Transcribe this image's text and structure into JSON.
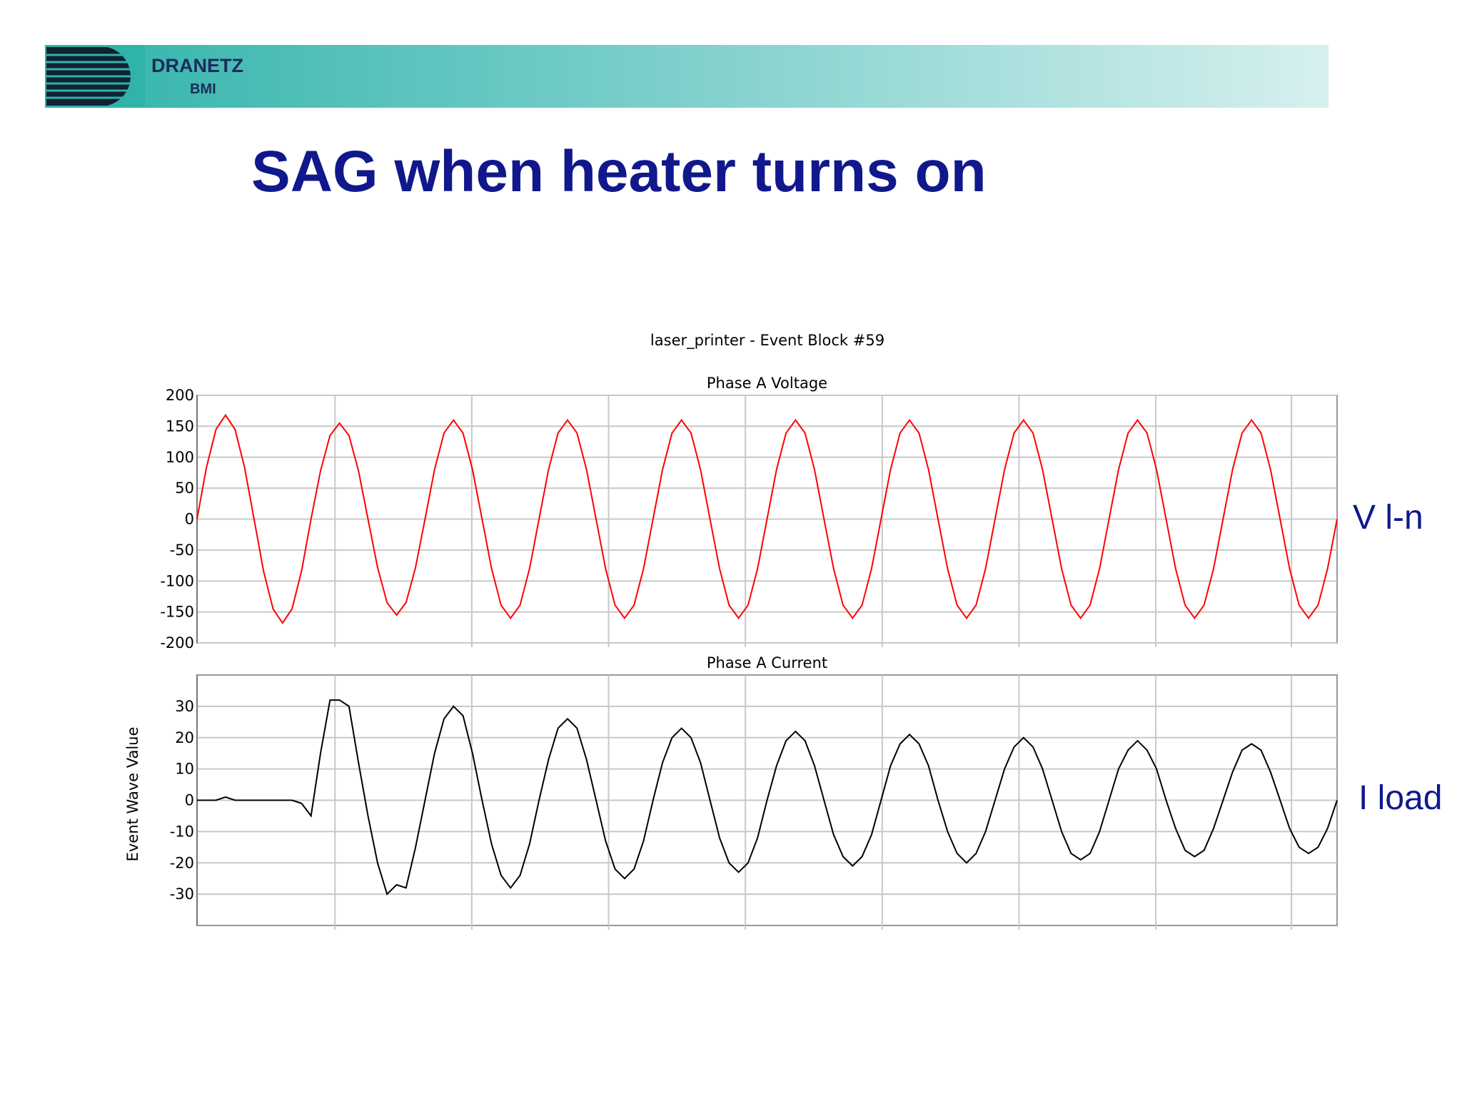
{
  "slide": {
    "title": "SAG when heater turns on",
    "logo_name": "DRANETZ",
    "logo_sub": "BMI",
    "label_voltage": "V l-n",
    "label_current": "I load"
  },
  "figure": {
    "title": "laser_printer - Event Block #59",
    "ylabel": "Event Wave Value"
  },
  "chart_data": [
    {
      "type": "line",
      "title": "Phase A Voltage",
      "color": "#ff0000",
      "grid": true,
      "ylim": [
        -200,
        200
      ],
      "yticks": [
        -200,
        -150,
        -100,
        -50,
        0,
        50,
        100,
        150,
        200
      ],
      "values": [
        0,
        84,
        145,
        168,
        145,
        84,
        0,
        -84,
        -145,
        -168,
        -145,
        -84,
        0,
        78,
        135,
        155,
        135,
        78,
        0,
        -78,
        -135,
        -155,
        -135,
        -78,
        0,
        80,
        139,
        160,
        139,
        80,
        0,
        -80,
        -139,
        -160,
        -139,
        -80,
        0,
        80,
        139,
        160,
        139,
        80,
        0,
        -80,
        -139,
        -160,
        -139,
        -80,
        0,
        80,
        139,
        160,
        139,
        80,
        0,
        -80,
        -139,
        -160,
        -139,
        -80,
        0,
        80,
        139,
        160,
        139,
        80,
        0,
        -80,
        -139,
        -160,
        -139,
        -80,
        0,
        80,
        139,
        160,
        139,
        80,
        0,
        -80,
        -139,
        -160,
        -139,
        -80,
        0,
        80,
        139,
        160,
        139,
        80,
        0,
        -80,
        -139,
        -160,
        -139,
        -80,
        0,
        80,
        139,
        160,
        139,
        80,
        0,
        -80,
        -139,
        -160,
        -139,
        -80,
        0,
        80,
        139,
        160,
        139,
        80,
        0,
        -80,
        -139,
        -160,
        -139,
        -80,
        0
      ]
    },
    {
      "type": "line",
      "title": "Phase A Current",
      "color": "#000000",
      "grid": true,
      "ylim": [
        -40,
        40
      ],
      "yticks": [
        -30,
        -20,
        -10,
        0,
        10,
        20,
        30
      ],
      "values": [
        0,
        0,
        0,
        1,
        0,
        0,
        0,
        0,
        0,
        0,
        0,
        -1,
        -5,
        15,
        32,
        32,
        30,
        12,
        -5,
        -20,
        -30,
        -27,
        -28,
        -15,
        0,
        15,
        26,
        30,
        27,
        15,
        0,
        -14,
        -24,
        -28,
        -24,
        -14,
        0,
        13,
        23,
        26,
        23,
        13,
        0,
        -13,
        -22,
        -25,
        -22,
        -13,
        0,
        12,
        20,
        23,
        20,
        12,
        0,
        -12,
        -20,
        -23,
        -20,
        -12,
        0,
        11,
        19,
        22,
        19,
        11,
        0,
        -11,
        -18,
        -21,
        -18,
        -11,
        0,
        11,
        18,
        21,
        18,
        11,
        0,
        -10,
        -17,
        -20,
        -17,
        -10,
        0,
        10,
        17,
        20,
        17,
        10,
        0,
        -10,
        -17,
        -19,
        -17,
        -10,
        0,
        10,
        16,
        19,
        16,
        10,
        0,
        -9,
        -16,
        -18,
        -16,
        -9,
        0,
        9,
        16,
        18,
        16,
        9,
        0,
        -9,
        -15,
        -17,
        -15,
        -9,
        0
      ]
    }
  ]
}
